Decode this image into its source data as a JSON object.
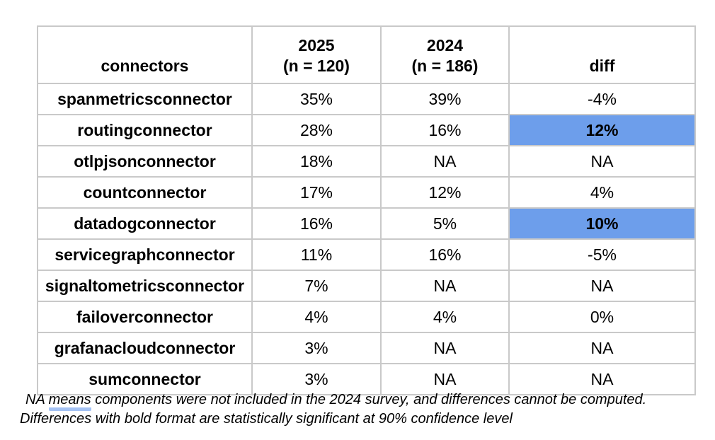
{
  "chart_data": {
    "type": "table",
    "columns": [
      {
        "label": "connectors",
        "sublabel": ""
      },
      {
        "label": "2025",
        "sublabel": "(n = 120)"
      },
      {
        "label": "2024",
        "sublabel": "(n = 186)"
      },
      {
        "label": "diff",
        "sublabel": ""
      }
    ],
    "rows": [
      {
        "connector": "spanmetricsconnector",
        "pct_2025": "35%",
        "pct_2024": "39%",
        "diff": "-4%",
        "diff_highlighted": false
      },
      {
        "connector": "routingconnector",
        "pct_2025": "28%",
        "pct_2024": "16%",
        "diff": "12%",
        "diff_highlighted": true
      },
      {
        "connector": "otlpjsonconnector",
        "pct_2025": "18%",
        "pct_2024": "NA",
        "diff": "NA",
        "diff_highlighted": false
      },
      {
        "connector": "countconnector",
        "pct_2025": "17%",
        "pct_2024": "12%",
        "diff": "4%",
        "diff_highlighted": false
      },
      {
        "connector": "datadogconnector",
        "pct_2025": "16%",
        "pct_2024": "5%",
        "diff": "10%",
        "diff_highlighted": true
      },
      {
        "connector": "servicegraphconnector",
        "pct_2025": "11%",
        "pct_2024": "16%",
        "diff": "-5%",
        "diff_highlighted": false
      },
      {
        "connector": "signaltometricsconnector",
        "pct_2025": "7%",
        "pct_2024": "NA",
        "diff": "NA",
        "diff_highlighted": false
      },
      {
        "connector": "failoverconnector",
        "pct_2025": "4%",
        "pct_2024": "4%",
        "diff": "0%",
        "diff_highlighted": false
      },
      {
        "connector": "grafanacloudconnector",
        "pct_2025": "3%",
        "pct_2024": "NA",
        "diff": "NA",
        "diff_highlighted": false
      },
      {
        "connector": "sumconnector",
        "pct_2025": "3%",
        "pct_2024": "NA",
        "diff": "NA",
        "diff_highlighted": false
      }
    ],
    "notes": [
      "NA means components were not included in the 2024 survey, and differences cannot be computed.",
      "Differences with bold format are statistically significant at 90% confidence level"
    ]
  },
  "footnote": {
    "line1_prefix": "NA ",
    "line1_underlined_word": "means",
    "line1_rest": " components were not included in the 2024 survey, and differences cannot be computed.",
    "line2": "Differences with bold format are statistically significant at 90% confidence level"
  },
  "colors": {
    "highlight_blue": "#6d9eeb",
    "border_gray": "#c9c9c9",
    "underline_blue": "#a4c2f4",
    "text": "#000000",
    "background": "#ffffff"
  }
}
